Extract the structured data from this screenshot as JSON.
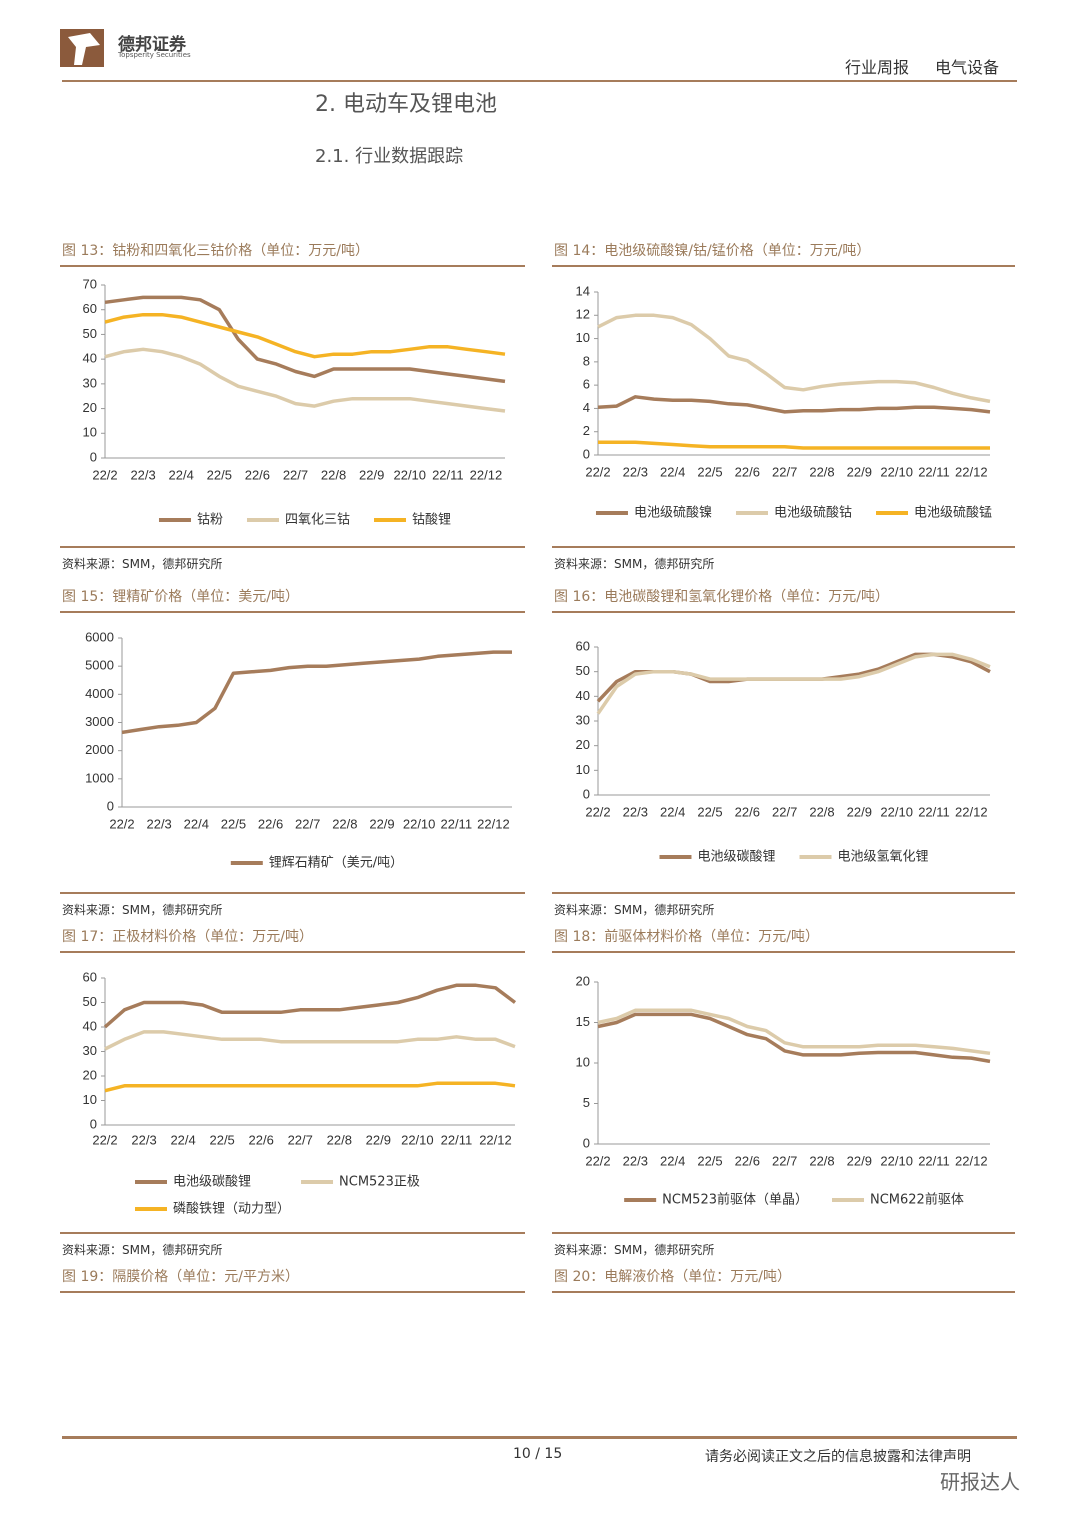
{
  "header": {
    "logo_cn": "德邦证券",
    "logo_en": "Topsperity Securities",
    "report_type": "行业周报",
    "sector": "电气设备"
  },
  "headings": [
    "2. 电动车及锂电池",
    "2.1. 行业数据跟踪"
  ],
  "chart_data": [
    {
      "type": "line",
      "title": "图 13：钴粉和四氧化三钴价格（单位：万元/吨）",
      "source": "资料来源：SMM，德邦研究所",
      "categories": [
        "22/2",
        null,
        "22/3",
        null,
        "22/4",
        null,
        "22/5",
        null,
        "22/6",
        null,
        "22/7",
        null,
        "22/8",
        null,
        "22/9",
        null,
        "22/10",
        null,
        "22/11",
        null,
        "22/12",
        null
      ],
      "series": [
        {
          "name": "钴粉",
          "color": "#a67c5b",
          "values": [
            63,
            64,
            65,
            65,
            65,
            64,
            60,
            48,
            40,
            38,
            35,
            33,
            36,
            36,
            36,
            36,
            36,
            35,
            34,
            33,
            32,
            31
          ]
        },
        {
          "name": "四氧化三钴",
          "color": "#dccbaa",
          "values": [
            41,
            43,
            44,
            43,
            41,
            38,
            33,
            29,
            27,
            25,
            22,
            21,
            23,
            24,
            24,
            24,
            24,
            23,
            22,
            21,
            20,
            19
          ]
        },
        {
          "name": "钴酸锂",
          "color": "#f5b324",
          "values": [
            55,
            57,
            58,
            58,
            57,
            55,
            53,
            51,
            49,
            46,
            43,
            41,
            42,
            42,
            43,
            43,
            44,
            45,
            45,
            44,
            43,
            42
          ]
        }
      ],
      "ylim": [
        0,
        70
      ],
      "yticks": [
        0,
        10,
        20,
        30,
        40,
        50,
        60,
        70
      ],
      "legend": "bottom"
    },
    {
      "type": "line",
      "title": "图 14：电池级硫酸镍/钴/锰价格（单位：万元/吨）",
      "source": "资料来源：SMM，德邦研究所",
      "categories": [
        "22/2",
        null,
        "22/3",
        null,
        "22/4",
        null,
        "22/5",
        null,
        "22/6",
        null,
        "22/7",
        null,
        "22/8",
        null,
        "22/9",
        null,
        "22/10",
        null,
        "22/11",
        null,
        "22/12",
        null
      ],
      "series": [
        {
          "name": "电池级硫酸镍",
          "color": "#a67c5b",
          "values": [
            4.1,
            4.2,
            5.0,
            4.8,
            4.7,
            4.7,
            4.6,
            4.4,
            4.3,
            4.0,
            3.7,
            3.8,
            3.8,
            3.9,
            3.9,
            4.0,
            4.0,
            4.1,
            4.1,
            4.0,
            3.9,
            3.7
          ]
        },
        {
          "name": "电池级硫酸钴",
          "color": "#dccbaa",
          "values": [
            11,
            11.8,
            12,
            12,
            11.8,
            11.2,
            10,
            8.5,
            8.1,
            7,
            5.8,
            5.6,
            5.9,
            6.1,
            6.2,
            6.3,
            6.3,
            6.2,
            5.8,
            5.3,
            4.9,
            4.6
          ]
        },
        {
          "name": "电池级硫酸锰",
          "color": "#f5b324",
          "values": [
            1.1,
            1.1,
            1.1,
            1.0,
            0.9,
            0.8,
            0.7,
            0.7,
            0.7,
            0.7,
            0.7,
            0.6,
            0.6,
            0.6,
            0.6,
            0.6,
            0.6,
            0.6,
            0.6,
            0.6,
            0.6,
            0.6
          ]
        }
      ],
      "ylim": [
        0,
        14
      ],
      "yticks": [
        0,
        2,
        4,
        6,
        8,
        10,
        12,
        14
      ],
      "legend": "bottom"
    },
    {
      "type": "line",
      "title": "图 15：锂精矿价格（单位：美元/吨）",
      "source": "资料来源：SMM，德邦研究所",
      "categories": [
        "22/2",
        null,
        "22/3",
        null,
        "22/4",
        null,
        "22/5",
        null,
        "22/6",
        null,
        "22/7",
        null,
        "22/8",
        null,
        "22/9",
        null,
        "22/10",
        null,
        "22/11",
        null,
        "22/12",
        null
      ],
      "series": [
        {
          "name": "锂辉石精矿（美元/吨）",
          "color": "#a67c5b",
          "values": [
            2650,
            2750,
            2850,
            2900,
            3000,
            3500,
            4750,
            4800,
            4850,
            4950,
            5000,
            5000,
            5050,
            5100,
            5150,
            5200,
            5250,
            5350,
            5400,
            5450,
            5500,
            5500
          ]
        }
      ],
      "ylim": [
        0,
        6000
      ],
      "yticks": [
        0,
        1000,
        2000,
        3000,
        4000,
        5000,
        6000
      ],
      "legend": "bottom"
    },
    {
      "type": "line",
      "title": "图 16：电池碳酸锂和氢氧化锂价格（单位：万元/吨）",
      "source": "资料来源：SMM，德邦研究所",
      "categories": [
        "22/2",
        null,
        "22/3",
        null,
        "22/4",
        null,
        "22/5",
        null,
        "22/6",
        null,
        "22/7",
        null,
        "22/8",
        null,
        "22/9",
        null,
        "22/10",
        null,
        "22/11",
        null,
        "22/12",
        null
      ],
      "series": [
        {
          "name": "电池级碳酸锂",
          "color": "#a67c5b",
          "values": [
            38,
            46,
            50,
            50,
            50,
            49,
            46,
            46,
            47,
            47,
            47,
            47,
            47,
            48,
            49,
            51,
            54,
            57,
            57,
            56,
            54,
            50
          ]
        },
        {
          "name": "电池级氢氧化锂",
          "color": "#dccbaa",
          "values": [
            33,
            44,
            49,
            50,
            50,
            49,
            47,
            47,
            47,
            47,
            47,
            47,
            47,
            47,
            48,
            50,
            53,
            56,
            57,
            57,
            55,
            52
          ]
        }
      ],
      "ylim": [
        0,
        60
      ],
      "yticks": [
        0,
        10,
        20,
        30,
        40,
        50,
        60
      ],
      "legend": "bottom"
    },
    {
      "type": "line",
      "title": "图 17：正极材料价格（单位：万元/吨）",
      "source": "资料来源：SMM，德邦研究所",
      "categories": [
        "22/2",
        null,
        "22/3",
        null,
        "22/4",
        null,
        "22/5",
        null,
        "22/6",
        null,
        "22/7",
        null,
        "22/8",
        null,
        "22/9",
        null,
        "22/10",
        null,
        "22/11",
        null,
        "22/12",
        null
      ],
      "series": [
        {
          "name": "电池级碳酸锂",
          "color": "#a67c5b",
          "values": [
            40,
            47,
            50,
            50,
            50,
            49,
            46,
            46,
            46,
            46,
            47,
            47,
            47,
            48,
            49,
            50,
            52,
            55,
            57,
            57,
            56,
            50
          ]
        },
        {
          "name": "NCM523正极",
          "color": "#dccbaa",
          "values": [
            31,
            35,
            38,
            38,
            37,
            36,
            35,
            35,
            35,
            34,
            34,
            34,
            34,
            34,
            34,
            34,
            35,
            35,
            36,
            35,
            35,
            32
          ]
        },
        {
          "name": "磷酸铁锂（动力型）",
          "color": "#f5b324",
          "values": [
            14,
            16,
            16,
            16,
            16,
            16,
            16,
            16,
            16,
            16,
            16,
            16,
            16,
            16,
            16,
            16,
            16,
            17,
            17,
            17,
            17,
            16
          ]
        }
      ],
      "ylim": [
        0,
        60
      ],
      "yticks": [
        0,
        10,
        20,
        30,
        40,
        50,
        60
      ],
      "legend": "bottom"
    },
    {
      "type": "line",
      "title": "图 18：前驱体材料价格（单位：万元/吨）",
      "source": "资料来源：SMM，德邦研究所",
      "categories": [
        "22/2",
        null,
        "22/3",
        null,
        "22/4",
        null,
        "22/5",
        null,
        "22/6",
        null,
        "22/7",
        null,
        "22/8",
        null,
        "22/9",
        null,
        "22/10",
        null,
        "22/11",
        null,
        "22/12",
        null
      ],
      "series": [
        {
          "name": "NCM523前驱体（单晶）",
          "color": "#a67c5b",
          "values": [
            14.5,
            15,
            16,
            16,
            16,
            16,
            15.5,
            14.5,
            13.5,
            13,
            11.5,
            11,
            11,
            11,
            11.2,
            11.3,
            11.3,
            11.3,
            11,
            10.7,
            10.6,
            10.2
          ]
        },
        {
          "name": "NCM622前驱体",
          "color": "#dccbaa",
          "values": [
            15,
            15.5,
            16.5,
            16.5,
            16.5,
            16.5,
            16,
            15.5,
            14.5,
            14,
            12.5,
            12,
            12,
            12,
            12,
            12.2,
            12.2,
            12.2,
            12,
            11.8,
            11.5,
            11.2
          ]
        }
      ],
      "ylim": [
        0,
        20
      ],
      "yticks": [
        0,
        5,
        10,
        15,
        20
      ],
      "legend": "bottom"
    }
  ],
  "more_figures": [
    "图 19：隔膜价格（单位：元/平方米）",
    "图 20：电解液价格（单位：万元/吨）"
  ],
  "footer": {
    "page": "10 / 15",
    "disclaimer": "请务必阅读正文之后的信息披露和法律声明",
    "watermark": "研报达人"
  }
}
